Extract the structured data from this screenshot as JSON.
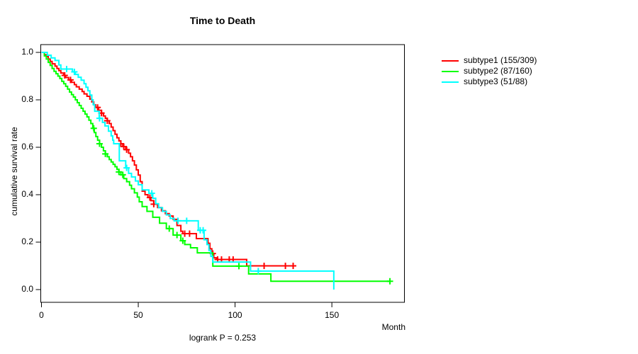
{
  "title": "Time to Death",
  "footnote": "logrank P = 0.253",
  "axes": {
    "x": {
      "label": "Month",
      "ticks": [
        0,
        50,
        100,
        150
      ]
    },
    "y": {
      "label": "cumulative survival rate",
      "ticks": [
        "0.0",
        "0.2",
        "0.4",
        "0.6",
        "0.8",
        "1.0"
      ]
    }
  },
  "legend": {
    "position": "right",
    "items": [
      {
        "label": "subtype1 (155/309)",
        "color": "#ff0000"
      },
      {
        "label": "subtype2 (87/160)",
        "color": "#00ff00"
      },
      {
        "label": "subtype3 (51/88)",
        "color": "#00ffff"
      }
    ]
  },
  "chart_data": {
    "type": "line",
    "variant": "kaplan-meier-step",
    "title": "Time to Death",
    "xlabel": "Month",
    "ylabel": "cumulative survival rate",
    "xlim": [
      0,
      188
    ],
    "ylim": [
      0,
      1.04
    ],
    "grid": false,
    "legend_position": "right",
    "annotations": [
      "logrank P = 0.253"
    ],
    "series": [
      {
        "name": "subtype1 (155/309)",
        "events": "155/309",
        "color": "#ff0000",
        "steps": [
          [
            0,
            1.0
          ],
          [
            1.5,
            0.99
          ],
          [
            2.5,
            0.982
          ],
          [
            3.5,
            0.972
          ],
          [
            4.5,
            0.962
          ],
          [
            5.5,
            0.952
          ],
          [
            7,
            0.942
          ],
          [
            8,
            0.932
          ],
          [
            9,
            0.923
          ],
          [
            10,
            0.913
          ],
          [
            11.5,
            0.903
          ],
          [
            12.5,
            0.894
          ],
          [
            14,
            0.884
          ],
          [
            15.5,
            0.874
          ],
          [
            17,
            0.864
          ],
          [
            18,
            0.855
          ],
          [
            19.5,
            0.845
          ],
          [
            21,
            0.835
          ],
          [
            22,
            0.825
          ],
          [
            23.5,
            0.815
          ],
          [
            25,
            0.803
          ],
          [
            26,
            0.791
          ],
          [
            27,
            0.779
          ],
          [
            28,
            0.768
          ],
          [
            29.5,
            0.756
          ],
          [
            31,
            0.744
          ],
          [
            32,
            0.732
          ],
          [
            33,
            0.722
          ],
          [
            34,
            0.712
          ],
          [
            35,
            0.7
          ],
          [
            36,
            0.685
          ],
          [
            37,
            0.67
          ],
          [
            38,
            0.655
          ],
          [
            39,
            0.64
          ],
          [
            40,
            0.627
          ],
          [
            41,
            0.615
          ],
          [
            42,
            0.603
          ],
          [
            43.5,
            0.59
          ],
          [
            45,
            0.575
          ],
          [
            46,
            0.56
          ],
          [
            47,
            0.543
          ],
          [
            48,
            0.525
          ],
          [
            49,
            0.505
          ],
          [
            50,
            0.483
          ],
          [
            51,
            0.455
          ],
          [
            52,
            0.415
          ],
          [
            53.5,
            0.4
          ],
          [
            55,
            0.388
          ],
          [
            56.5,
            0.375
          ],
          [
            58,
            0.36
          ],
          [
            60,
            0.346
          ],
          [
            62,
            0.332
          ],
          [
            64,
            0.32
          ],
          [
            66,
            0.31
          ],
          [
            68,
            0.296
          ],
          [
            70,
            0.27
          ],
          [
            72,
            0.246
          ],
          [
            73,
            0.236
          ],
          [
            80,
            0.215
          ],
          [
            86,
            0.195
          ],
          [
            87,
            0.172
          ],
          [
            88,
            0.152
          ],
          [
            89,
            0.134
          ],
          [
            90.5,
            0.127
          ],
          [
            106,
            0.1
          ]
        ],
        "end_time": 130.5,
        "censor_times": [
          12,
          15,
          29,
          31,
          34,
          41,
          42.5,
          44,
          56,
          58,
          74,
          76.5,
          88.5,
          91,
          93,
          97,
          99,
          115,
          126,
          130
        ]
      },
      {
        "name": "subtype2 (87/160)",
        "events": "87/160",
        "color": "#00ff00",
        "steps": [
          [
            0,
            1.0
          ],
          [
            1.5,
            0.985
          ],
          [
            2.5,
            0.972
          ],
          [
            3.5,
            0.958
          ],
          [
            4.5,
            0.945
          ],
          [
            5.5,
            0.932
          ],
          [
            6.5,
            0.92
          ],
          [
            7.5,
            0.91
          ],
          [
            8.5,
            0.9
          ],
          [
            9.5,
            0.89
          ],
          [
            10.5,
            0.878
          ],
          [
            11.5,
            0.868
          ],
          [
            12.5,
            0.857
          ],
          [
            13.5,
            0.845
          ],
          [
            14.5,
            0.833
          ],
          [
            15.5,
            0.822
          ],
          [
            16.5,
            0.812
          ],
          [
            17.5,
            0.8
          ],
          [
            18.5,
            0.788
          ],
          [
            19.5,
            0.776
          ],
          [
            20.5,
            0.764
          ],
          [
            21.5,
            0.752
          ],
          [
            22.5,
            0.74
          ],
          [
            23.5,
            0.728
          ],
          [
            24.5,
            0.714
          ],
          [
            25.5,
            0.7
          ],
          [
            26.5,
            0.68
          ],
          [
            27.3,
            0.662
          ],
          [
            28.1,
            0.645
          ],
          [
            29,
            0.63
          ],
          [
            30,
            0.615
          ],
          [
            31,
            0.6
          ],
          [
            32,
            0.585
          ],
          [
            33,
            0.572
          ],
          [
            34,
            0.56
          ],
          [
            35,
            0.548
          ],
          [
            36,
            0.538
          ],
          [
            37,
            0.528
          ],
          [
            38,
            0.518
          ],
          [
            39,
            0.507
          ],
          [
            40,
            0.496
          ],
          [
            41,
            0.484
          ],
          [
            42.5,
            0.468
          ],
          [
            44,
            0.455
          ],
          [
            45.5,
            0.44
          ],
          [
            46.5,
            0.425
          ],
          [
            48,
            0.408
          ],
          [
            49.5,
            0.39
          ],
          [
            50.5,
            0.37
          ],
          [
            52,
            0.35
          ],
          [
            54.5,
            0.33
          ],
          [
            57.5,
            0.305
          ],
          [
            61,
            0.28
          ],
          [
            64.5,
            0.257
          ],
          [
            68,
            0.23
          ],
          [
            72,
            0.206
          ],
          [
            74,
            0.19
          ],
          [
            77,
            0.176
          ],
          [
            80.5,
            0.155
          ],
          [
            88.5,
            0.099
          ],
          [
            107,
            0.066
          ],
          [
            118.5,
            0.035
          ]
        ],
        "end_time": 180,
        "censor_times": [
          27,
          30,
          33,
          40,
          42,
          66,
          70,
          73,
          102,
          180
        ]
      },
      {
        "name": "subtype3 (51/88)",
        "events": "51/88",
        "color": "#00ffff",
        "steps": [
          [
            0,
            1.0
          ],
          [
            3,
            0.988
          ],
          [
            5,
            0.977
          ],
          [
            7,
            0.966
          ],
          [
            9,
            0.947
          ],
          [
            10,
            0.93
          ],
          [
            16,
            0.918
          ],
          [
            17.5,
            0.907
          ],
          [
            19,
            0.895
          ],
          [
            20.5,
            0.883
          ],
          [
            22,
            0.868
          ],
          [
            23,
            0.853
          ],
          [
            24,
            0.838
          ],
          [
            25,
            0.82
          ],
          [
            26,
            0.8
          ],
          [
            26.7,
            0.78
          ],
          [
            27.5,
            0.752
          ],
          [
            29.8,
            0.722
          ],
          [
            31.5,
            0.705
          ],
          [
            32.8,
            0.69
          ],
          [
            34.6,
            0.668
          ],
          [
            36,
            0.648
          ],
          [
            36.8,
            0.63
          ],
          [
            37.3,
            0.615
          ],
          [
            40.2,
            0.543
          ],
          [
            43.5,
            0.513
          ],
          [
            45,
            0.49
          ],
          [
            46.5,
            0.475
          ],
          [
            48.5,
            0.458
          ],
          [
            50,
            0.442
          ],
          [
            52,
            0.42
          ],
          [
            55.5,
            0.406
          ],
          [
            57.5,
            0.385
          ],
          [
            59,
            0.362
          ],
          [
            60.5,
            0.345
          ],
          [
            62.5,
            0.33
          ],
          [
            64.5,
            0.315
          ],
          [
            66.5,
            0.3
          ],
          [
            68.5,
            0.29
          ],
          [
            81,
            0.25
          ],
          [
            84,
            0.21
          ],
          [
            85.5,
            0.19
          ],
          [
            86.5,
            0.165
          ],
          [
            87.5,
            0.14
          ],
          [
            88.5,
            0.116
          ],
          [
            108,
            0.078
          ],
          [
            151,
            0.0
          ]
        ],
        "end_time": 151,
        "censor_times": [
          13,
          17,
          30,
          44,
          57,
          70.5,
          75,
          82,
          83.5,
          112
        ]
      }
    ]
  }
}
